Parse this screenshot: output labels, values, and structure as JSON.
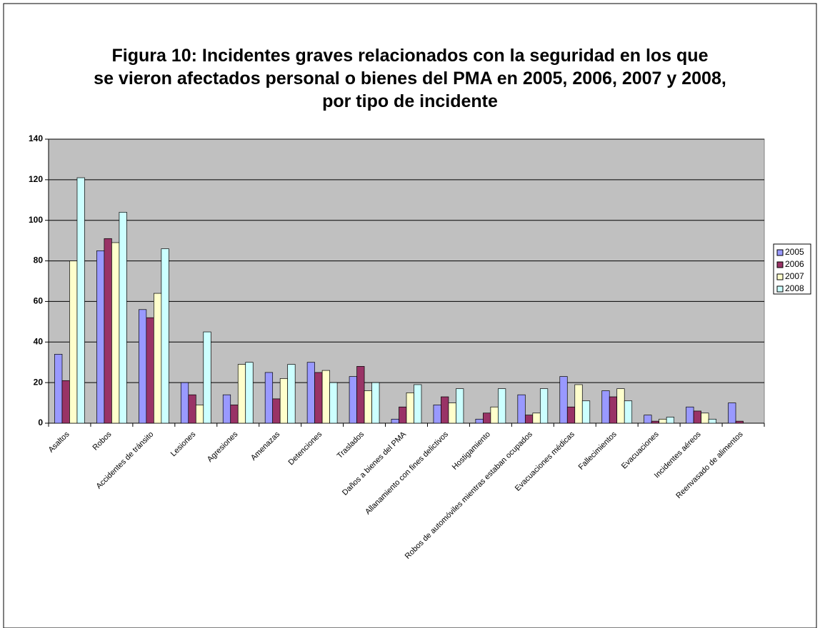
{
  "chart_data": {
    "type": "bar",
    "title": [
      "Figura 10: Incidentes graves relacionados con la seguridad en los que",
      "se vieron afectados personal o bienes del PMA en 2005, 2006, 2007 y 2008,",
      "por tipo de incidente"
    ],
    "categories": [
      "Asaltos",
      "Robos",
      "Accidentes de tránsito",
      "Lesiones",
      "Agresiones",
      "Amenazas",
      "Detenciones",
      "Traslados",
      "Daños a bienes del PMA",
      "Allanamiento con fines delictivos",
      "Hostigamiento",
      "Robos de automóviles mientras estaban ocupados",
      "Evacuaciones médicas",
      "Fallecimientos",
      "Evacuaciones",
      "Incidentes aéreos",
      "Reenvasado de alimentos"
    ],
    "series": [
      {
        "name": "2005",
        "color": "#9999ff",
        "values": [
          34,
          85,
          56,
          20,
          14,
          25,
          30,
          23,
          2,
          9,
          2,
          14,
          23,
          16,
          4,
          8,
          10
        ]
      },
      {
        "name": "2006",
        "color": "#993366",
        "values": [
          21,
          91,
          52,
          14,
          9,
          12,
          25,
          28,
          8,
          13,
          5,
          4,
          8,
          13,
          1,
          6,
          1
        ]
      },
      {
        "name": "2007",
        "color": "#ffffcc",
        "values": [
          80,
          89,
          64,
          9,
          29,
          22,
          26,
          16,
          15,
          10,
          8,
          5,
          19,
          17,
          2,
          5,
          0
        ]
      },
      {
        "name": "2008",
        "color": "#ccffff",
        "values": [
          121,
          104,
          86,
          45,
          30,
          29,
          20,
          20,
          19,
          17,
          17,
          17,
          11,
          11,
          3,
          2,
          0
        ]
      }
    ],
    "ylim": [
      0,
      140
    ],
    "yticks": [
      0,
      20,
      40,
      60,
      80,
      100,
      120,
      140
    ],
    "grid": true,
    "legend": "right"
  }
}
